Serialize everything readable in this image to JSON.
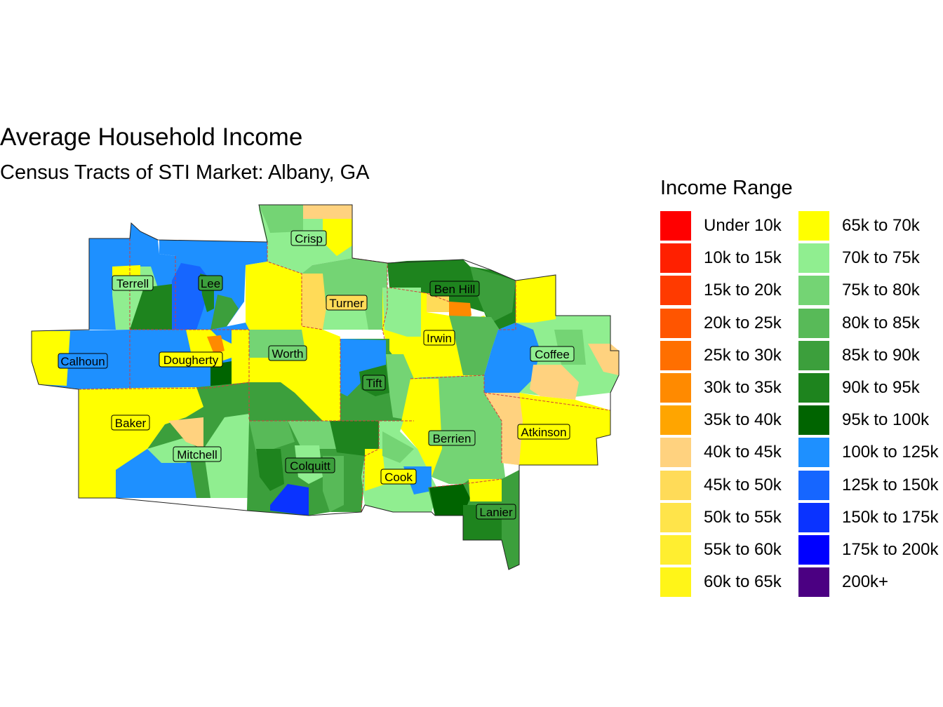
{
  "title": "Average Household Income",
  "subtitle": "Census Tracts of STI Market: Albany, GA",
  "legend": {
    "title": "Income Range",
    "items": [
      {
        "label": "Under 10k",
        "color": "#FF0000"
      },
      {
        "label": "10k to 15k",
        "color": "#FF2000"
      },
      {
        "label": "15k to 20k",
        "color": "#FF3A00"
      },
      {
        "label": "20k to 25k",
        "color": "#FF5500"
      },
      {
        "label": "25k to 30k",
        "color": "#FF6F00"
      },
      {
        "label": "30k to 35k",
        "color": "#FF8A00"
      },
      {
        "label": "35k to 40k",
        "color": "#FFA500"
      },
      {
        "label": "40k to 45k",
        "color": "#FFD27F"
      },
      {
        "label": "45k to 50k",
        "color": "#FFDB58"
      },
      {
        "label": "50k to 55k",
        "color": "#FFE44A"
      },
      {
        "label": "55k to 60k",
        "color": "#FFEE30"
      },
      {
        "label": "60k to 65k",
        "color": "#FFF518"
      },
      {
        "label": "65k to 70k",
        "color": "#FFFF00"
      },
      {
        "label": "70k to 75k",
        "color": "#90EE90"
      },
      {
        "label": "75k to 80k",
        "color": "#74D474"
      },
      {
        "label": "80k to 85k",
        "color": "#58BA58"
      },
      {
        "label": "85k to 90k",
        "color": "#3C9F3C"
      },
      {
        "label": "90k to 95k",
        "color": "#1E841E"
      },
      {
        "label": "95k to 100k",
        "color": "#006400"
      },
      {
        "label": "100k to 125k",
        "color": "#1E90FF"
      },
      {
        "label": "125k to 150k",
        "color": "#1666FF"
      },
      {
        "label": "150k to 175k",
        "color": "#0A33FF"
      },
      {
        "label": "175k to 200k",
        "color": "#0000FF"
      },
      {
        "label": "200k+",
        "color": "#4B0082"
      }
    ]
  },
  "counties": [
    {
      "name": "Crisp"
    },
    {
      "name": "Terrell"
    },
    {
      "name": "Lee"
    },
    {
      "name": "Turner"
    },
    {
      "name": "Ben Hill"
    },
    {
      "name": "Irwin"
    },
    {
      "name": "Coffee"
    },
    {
      "name": "Calhoun"
    },
    {
      "name": "Dougherty"
    },
    {
      "name": "Worth"
    },
    {
      "name": "Tift"
    },
    {
      "name": "Baker"
    },
    {
      "name": "Mitchell"
    },
    {
      "name": "Colquitt"
    },
    {
      "name": "Berrien"
    },
    {
      "name": "Atkinson"
    },
    {
      "name": "Cook"
    },
    {
      "name": "Lanier"
    }
  ]
}
